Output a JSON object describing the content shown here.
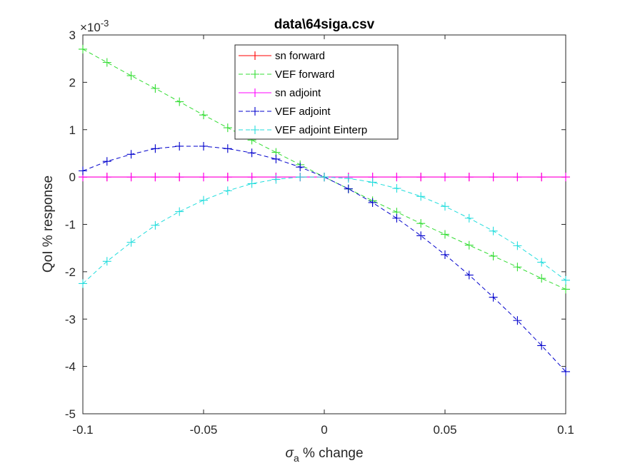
{
  "chart_data": {
    "type": "line",
    "title": "data\\64siga.csv",
    "xlabel": {
      "symbol": "σ",
      "subscript": "a",
      "rest": " % change"
    },
    "ylabel": "QoI % response",
    "exponent_label": {
      "base": "×10",
      "exp": "-3"
    },
    "xlim": [
      -0.1,
      0.1
    ],
    "ylim": [
      -5,
      3
    ],
    "xticks": [
      -0.1,
      -0.05,
      0,
      0.05,
      0.1
    ],
    "xtick_labels": [
      "-0.1",
      "-0.05",
      "0",
      "0.05",
      "0.1"
    ],
    "yticks": [
      3,
      2,
      1,
      0,
      -1,
      -2,
      -3,
      -4,
      -5
    ],
    "ytick_labels": [
      "3",
      "2",
      "1",
      "0",
      "-1",
      "-2",
      "-3",
      "-4",
      "-5"
    ],
    "grid": false,
    "legend_position": "top-center",
    "x": [
      -0.1,
      -0.09,
      -0.08,
      -0.07,
      -0.06,
      -0.05,
      -0.04,
      -0.03,
      -0.02,
      -0.01,
      0,
      0.01,
      0.02,
      0.03,
      0.04,
      0.05,
      0.06,
      0.07,
      0.08,
      0.09,
      0.1
    ],
    "series": [
      {
        "name": "sn forward",
        "color": "#ff0000",
        "dash": "solid",
        "values": [
          0,
          0,
          0,
          0,
          0,
          0,
          0,
          0,
          0,
          0,
          0,
          0,
          0,
          0,
          0,
          0,
          0,
          0,
          0,
          0,
          0
        ]
      },
      {
        "name": "VEF forward",
        "color": "#33dd33",
        "dash": "dashed",
        "values": [
          2.7,
          2.42,
          2.14,
          1.87,
          1.59,
          1.31,
          1.04,
          0.78,
          0.52,
          0.26,
          0,
          -0.25,
          -0.5,
          -0.74,
          -0.98,
          -1.21,
          -1.44,
          -1.67,
          -1.9,
          -2.14,
          -2.37
        ]
      },
      {
        "name": "sn adjoint",
        "color": "#ff00ff",
        "dash": "solid",
        "values": [
          0,
          0,
          0,
          0,
          0,
          0,
          0,
          0,
          0,
          0,
          0,
          0,
          0,
          0,
          0,
          0,
          0,
          0,
          0,
          0,
          0
        ]
      },
      {
        "name": "VEF adjoint",
        "color": "#0000cc",
        "dash": "dashed",
        "values": [
          0.13,
          0.33,
          0.48,
          0.6,
          0.65,
          0.65,
          0.6,
          0.51,
          0.38,
          0.21,
          0,
          -0.25,
          -0.54,
          -0.87,
          -1.24,
          -1.64,
          -2.07,
          -2.54,
          -3.03,
          -3.56,
          -4.11
        ]
      },
      {
        "name": "VEF adjoint Einterp",
        "color": "#22dddd",
        "dash": "dashed",
        "values": [
          -2.25,
          -1.78,
          -1.38,
          -1.02,
          -0.73,
          -0.49,
          -0.29,
          -0.14,
          -0.05,
          0,
          0,
          -0.03,
          -0.11,
          -0.24,
          -0.41,
          -0.62,
          -0.87,
          -1.14,
          -1.45,
          -1.8,
          -2.18
        ]
      }
    ]
  }
}
